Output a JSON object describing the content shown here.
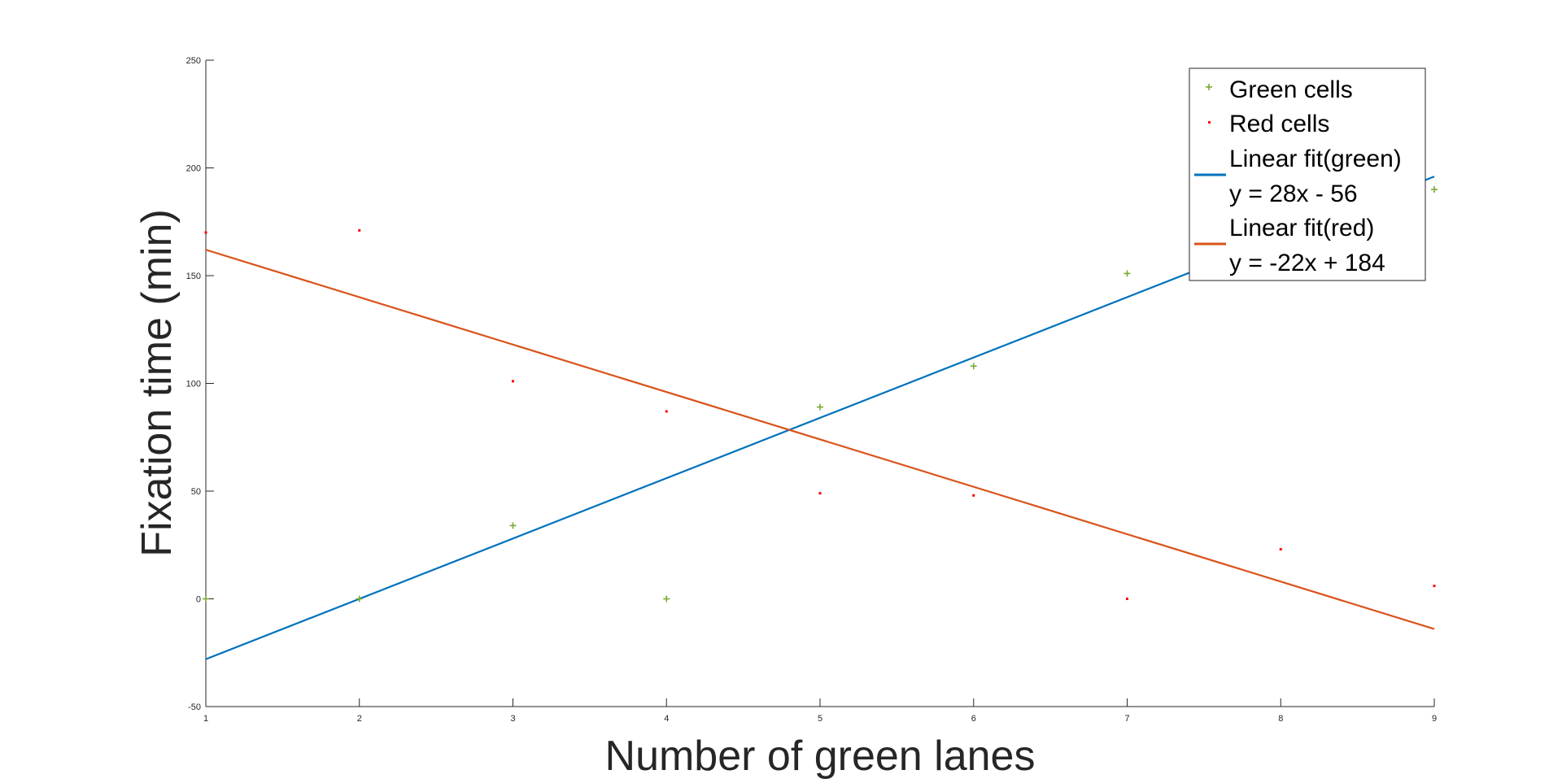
{
  "chart_data": {
    "type": "scatter",
    "xlabel": "Number of green lanes",
    "ylabel": "Fixation time (min)",
    "xlim": [
      1,
      9
    ],
    "ylim": [
      -50,
      250
    ],
    "xticks": [
      "1",
      "2",
      "3",
      "4",
      "5",
      "6",
      "7",
      "8",
      "9"
    ],
    "yticks": [
      "-50",
      "0",
      "50",
      "100",
      "150",
      "200",
      "250"
    ],
    "grid": false,
    "legend_position": "top-right",
    "series": [
      {
        "name": "Green cells",
        "kind": "scatter",
        "marker": "+",
        "color": "#77AC30",
        "points": [
          [
            1,
            0
          ],
          [
            2,
            0
          ],
          [
            3,
            34
          ],
          [
            4,
            0
          ],
          [
            5,
            89
          ],
          [
            6,
            108
          ],
          [
            7,
            151
          ],
          [
            9,
            190
          ]
        ]
      },
      {
        "name": "Red cells",
        "kind": "scatter",
        "marker": ".",
        "color": "#FF0000",
        "points": [
          [
            1,
            170
          ],
          [
            2,
            171
          ],
          [
            3,
            101
          ],
          [
            4,
            87
          ],
          [
            5,
            49
          ],
          [
            6,
            48
          ],
          [
            7,
            0
          ],
          [
            8,
            23
          ],
          [
            9,
            6
          ]
        ]
      },
      {
        "name": "Linear fit(green)",
        "equation": "y = 28x - 56",
        "kind": "line",
        "color": "#0072BD",
        "slope": 28,
        "intercept": -56
      },
      {
        "name": "Linear fit(red)",
        "equation": "y = -22x + 184",
        "kind": "line",
        "color": "#D95319",
        "slope": -22,
        "intercept": 184
      }
    ]
  }
}
